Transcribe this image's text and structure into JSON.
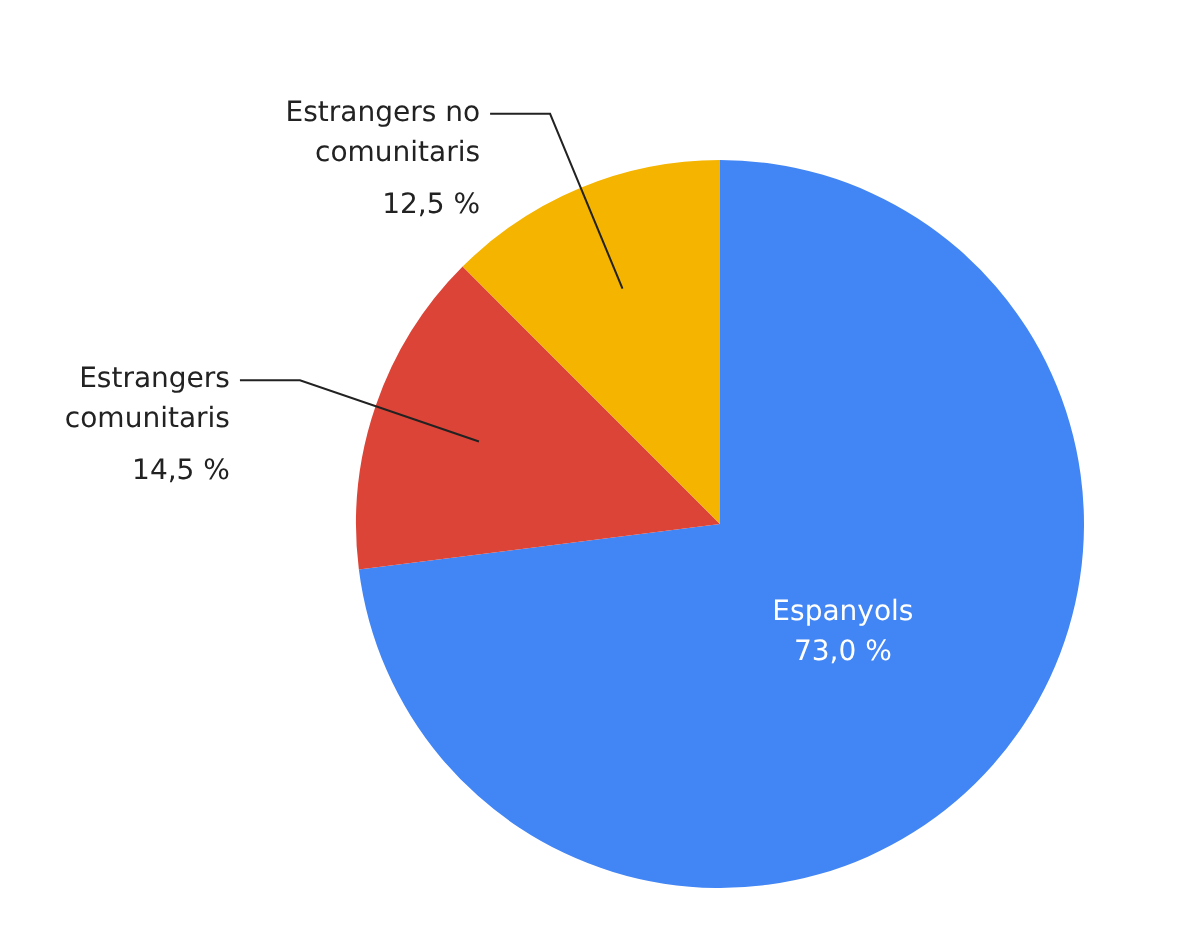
{
  "chart_data": {
    "type": "pie",
    "categories": [
      "Espanyols",
      "Estrangers comunitaris",
      "Estrangers no comunitaris"
    ],
    "values": [
      73.0,
      14.5,
      12.5
    ],
    "value_labels": [
      "73,0 %",
      "14,5 %",
      "12,5 %"
    ],
    "colors": [
      "#4285f4",
      "#db4437",
      "#f4b400"
    ],
    "legend": false
  }
}
